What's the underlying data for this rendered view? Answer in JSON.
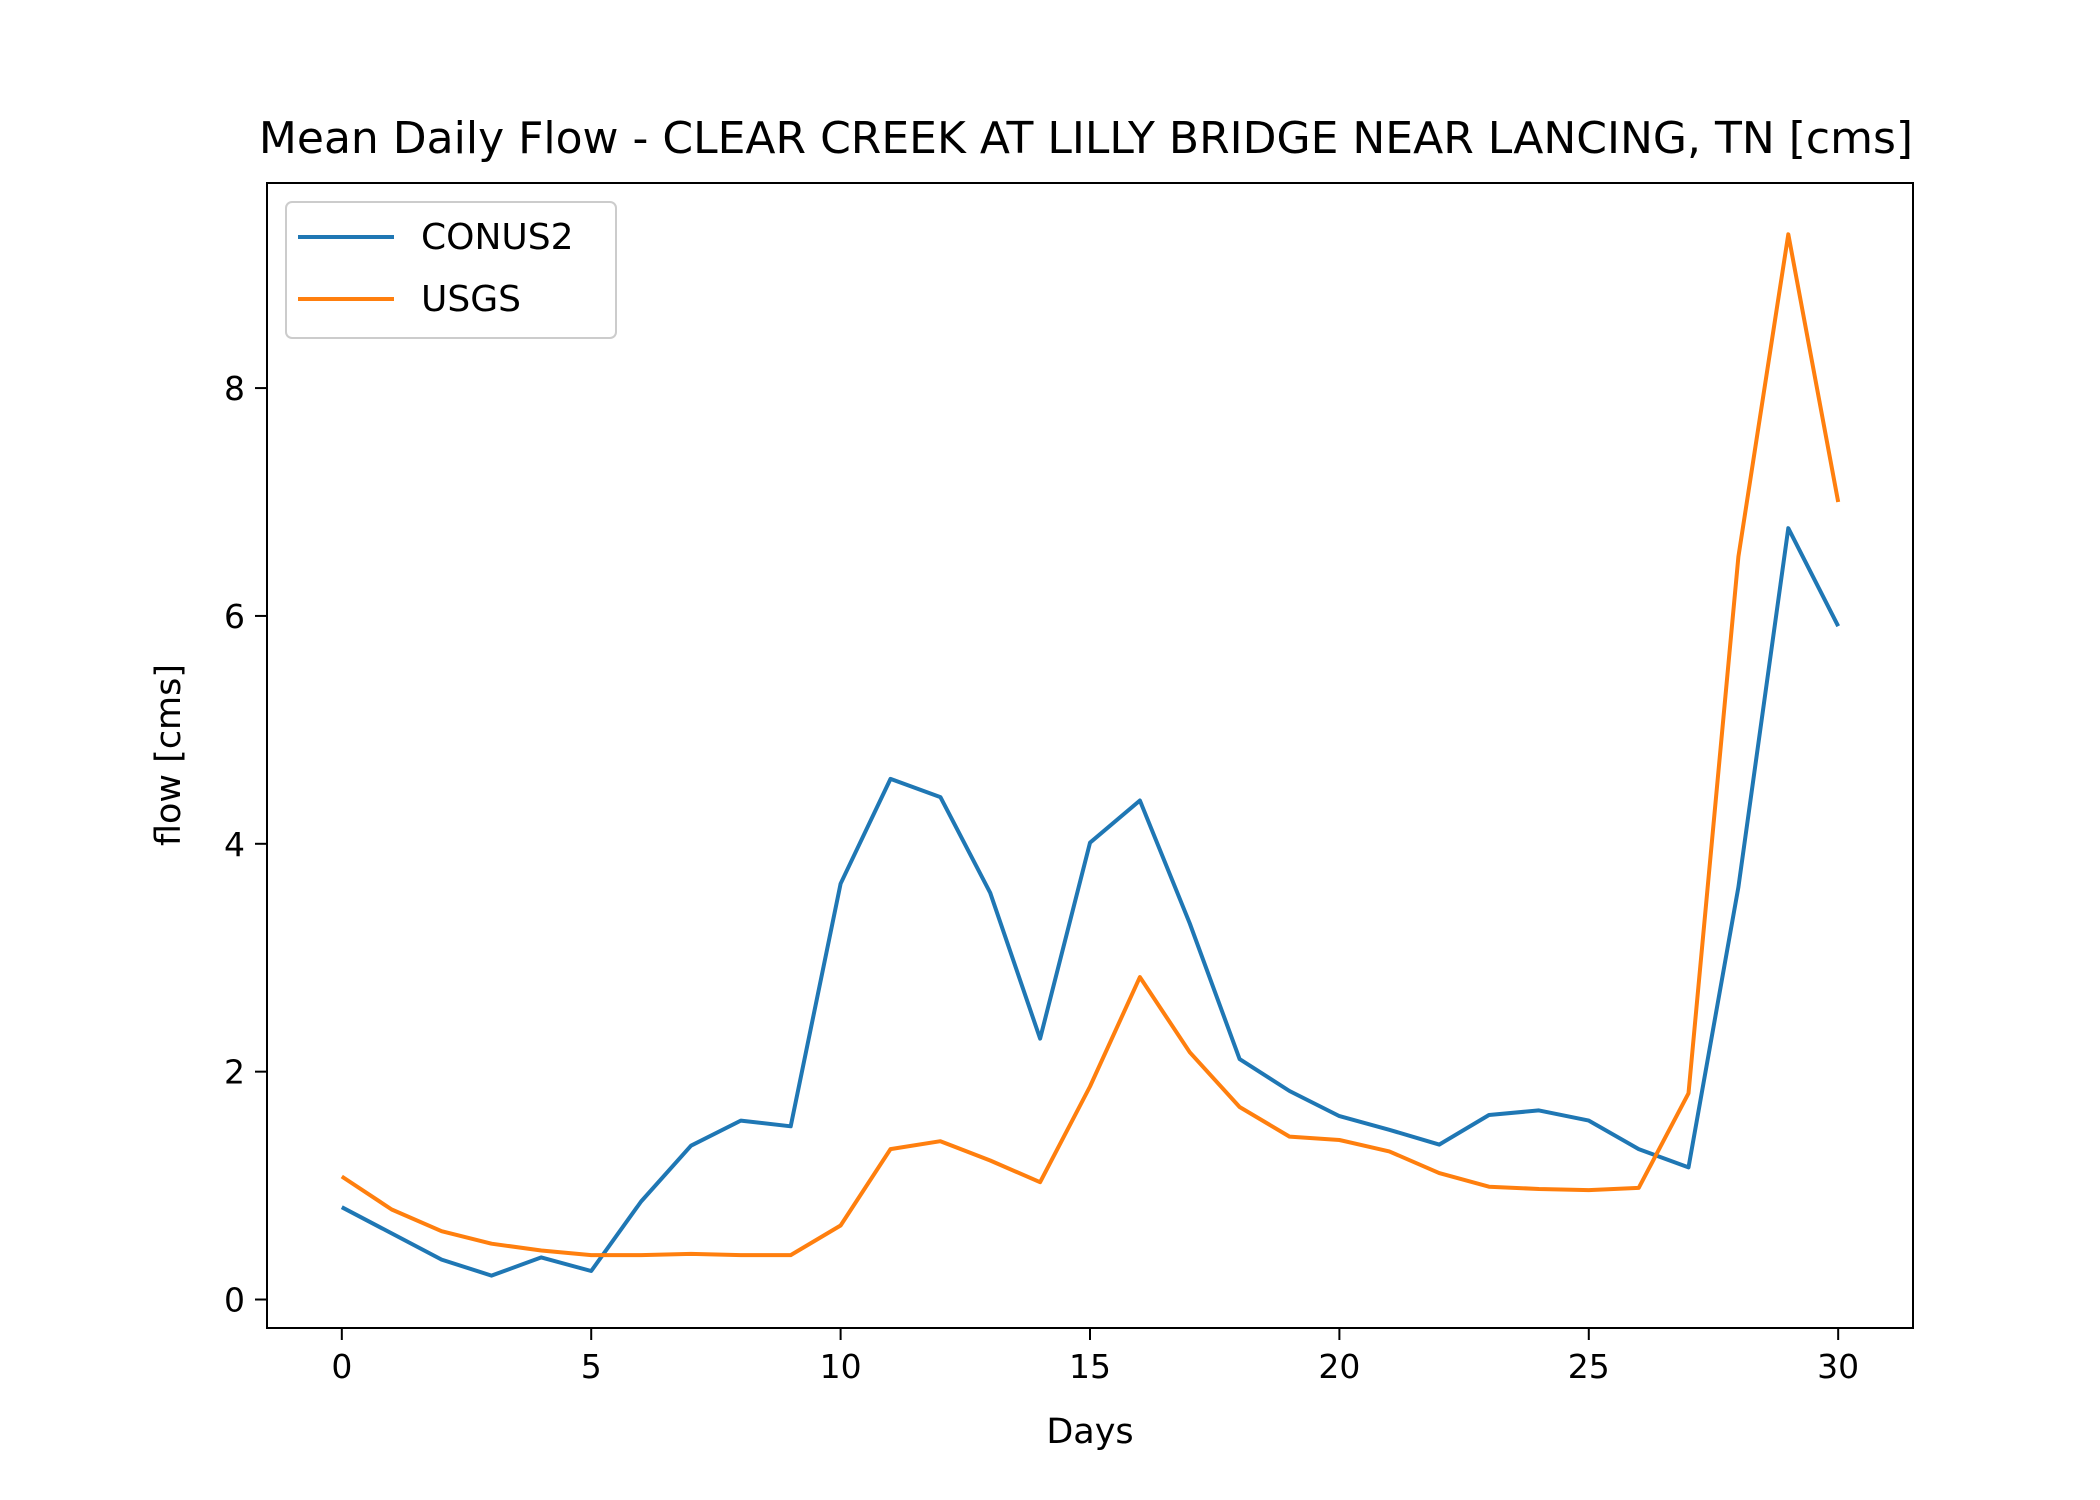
{
  "chart_data": {
    "type": "line",
    "title": "Mean Daily Flow - CLEAR CREEK AT LILLY BRIDGE NEAR LANCING, TN [cms]",
    "xlabel": "Days",
    "ylabel": "flow [cms]",
    "xlim": [
      -1.5,
      31.5
    ],
    "ylim": [
      -0.25,
      9.8
    ],
    "xticks": [
      0,
      5,
      10,
      15,
      20,
      25,
      30
    ],
    "yticks": [
      0,
      2,
      4,
      6,
      8
    ],
    "grid": false,
    "legend": "top-left",
    "x": [
      0,
      1,
      2,
      3,
      4,
      5,
      6,
      7,
      8,
      9,
      10,
      11,
      12,
      13,
      14,
      15,
      16,
      17,
      18,
      19,
      20,
      21,
      22,
      23,
      24,
      25,
      26,
      27,
      28,
      29,
      30
    ],
    "series": [
      {
        "name": "CONUS2",
        "color": "#1f77b4",
        "values": [
          0.81,
          0.58,
          0.35,
          0.21,
          0.37,
          0.25,
          0.86,
          1.35,
          1.57,
          1.52,
          3.65,
          4.57,
          4.41,
          3.57,
          2.29,
          4.01,
          4.38,
          3.3,
          2.11,
          1.83,
          1.61,
          1.49,
          1.36,
          1.62,
          1.66,
          1.57,
          1.32,
          1.16,
          3.62,
          6.77,
          5.91
        ]
      },
      {
        "name": "USGS",
        "color": "#ff7f0e",
        "values": [
          1.08,
          0.79,
          0.6,
          0.49,
          0.43,
          0.39,
          0.39,
          0.4,
          0.39,
          0.39,
          0.65,
          1.32,
          1.39,
          1.22,
          1.03,
          1.87,
          2.83,
          2.17,
          1.69,
          1.43,
          1.4,
          1.3,
          1.11,
          0.99,
          0.97,
          0.96,
          0.98,
          1.81,
          6.52,
          9.35,
          7.0
        ]
      }
    ]
  }
}
